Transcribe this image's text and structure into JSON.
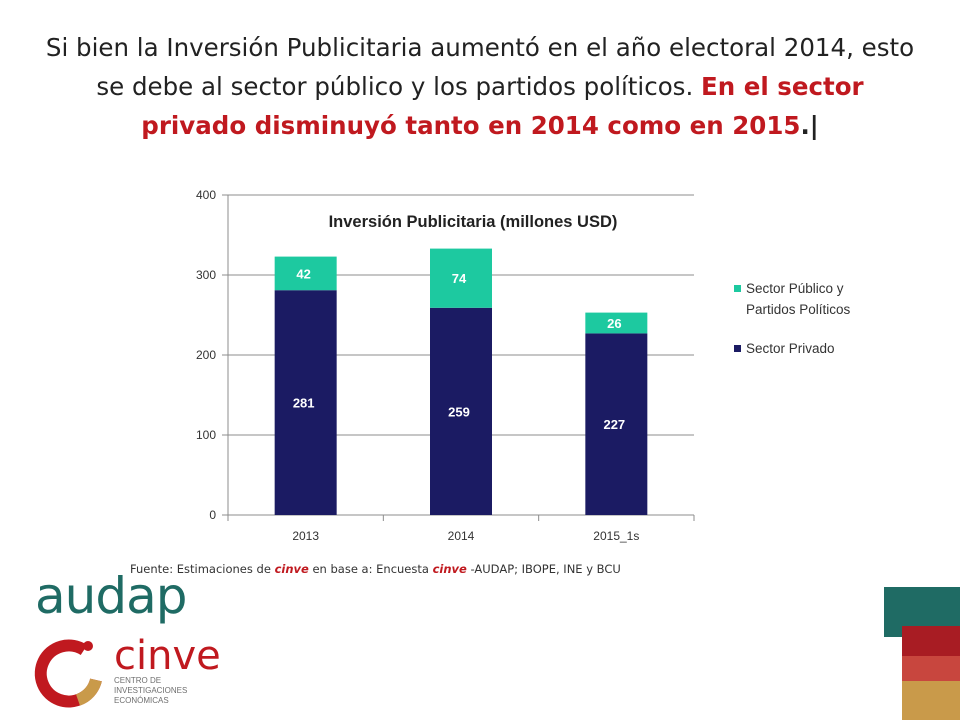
{
  "slide": {
    "title_part1": "Si bien la Inversión Publicitaria aumentó en el año electoral 2014, esto se debe al sector público y los partidos políticos.",
    "title_part2": "En el sector privado disminuyó tanto en 2014 como en 2015",
    "title_part3": ".",
    "title_cursor": "|"
  },
  "source": {
    "prefix": "Fuente: Estimaciones de",
    "brand1": "cinve",
    "middle": "en base a: Encuesta",
    "brand2": "cinve",
    "suffix": "-AUDAP; IBOPE, INE y BCU"
  },
  "logos": {
    "audap": "audap",
    "cinve": "cinve",
    "cinve_sub_line1": "CENTRO DE",
    "cinve_sub_line2": "INVESTIGACIONES",
    "cinve_sub_line3": "ECONÓMICAS"
  },
  "colors": {
    "privado": "#1b1b63",
    "publico": "#1dc9a0",
    "axis": "#8c8c8c",
    "grid": "#8c8c8c",
    "text": "#222222",
    "accent": "#c0191f",
    "brand_green": "#1f6b64"
  },
  "chart_data": {
    "type": "bar",
    "stacked": true,
    "title": "Inversión Publicitaria (millones USD)",
    "categories": [
      "2013",
      "2014",
      "2015_1s"
    ],
    "series": [
      {
        "name": "Sector Privado",
        "values": [
          281,
          259,
          227
        ],
        "color": "#1b1b63",
        "label_color": "#ffffff"
      },
      {
        "name": "Sector Público y Partidos Políticos",
        "values": [
          42,
          74,
          26
        ],
        "color": "#1dc9a0",
        "label_color": "#ffffff"
      }
    ],
    "ylim": [
      0,
      400
    ],
    "yticks": [
      "0",
      "100",
      "200",
      "300",
      "400"
    ],
    "grid": true,
    "legend": "right",
    "legend_entries": [
      {
        "line1": "Sector Público y",
        "line2": "Partidos Políticos",
        "color": "#1dc9a0"
      },
      {
        "line1": "Sector Privado",
        "line2": "",
        "color": "#1b1b63"
      }
    ],
    "xlabel": "",
    "ylabel": ""
  }
}
